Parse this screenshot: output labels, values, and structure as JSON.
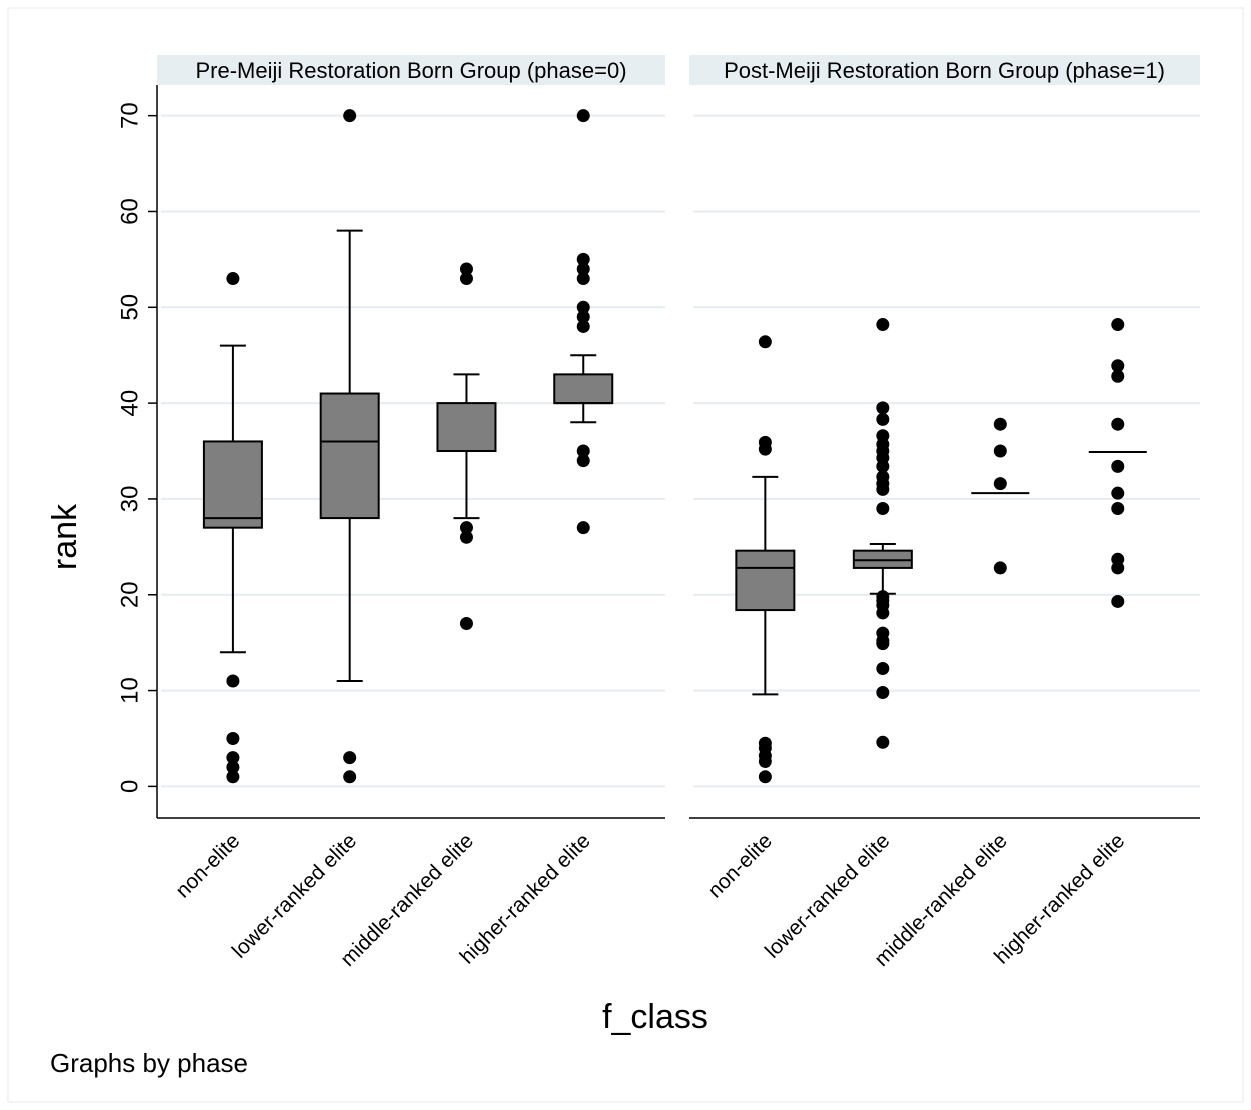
{
  "chart_data": {
    "type": "box",
    "ylabel": "rank",
    "xlabel": "f_class",
    "note": "Graphs by phase",
    "categories": [
      "non-elite",
      "lower-ranked elite",
      "middle-ranked elite",
      "higher-ranked elite"
    ],
    "grid": true,
    "colors": {
      "box_fill": "#7f7f7f",
      "grid": "#e6ecef",
      "panel_title_bg": "#e7eef1",
      "marker": "#000000"
    },
    "panels": [
      {
        "title": "Pre-Meiji Restoration Born Group (phase=0)",
        "yticks": [
          0,
          10,
          20,
          30,
          40,
          50,
          60,
          70
        ],
        "ylim": [
          -3.3,
          73.2
        ],
        "boxes": [
          {
            "category": "non-elite",
            "lower_whisker": 14,
            "q1": 27,
            "median": 28,
            "q3": 36,
            "upper_whisker": 46,
            "outliers": [
              53,
              11,
              5,
              3,
              2,
              1
            ]
          },
          {
            "category": "lower-ranked elite",
            "lower_whisker": 11,
            "q1": 28,
            "median": 36,
            "q3": 41,
            "upper_whisker": 58,
            "outliers": [
              70,
              3,
              1
            ]
          },
          {
            "category": "middle-ranked elite",
            "lower_whisker": 28,
            "q1": 35,
            "median": 35,
            "q3": 40,
            "upper_whisker": 43,
            "outliers": [
              54,
              53,
              27,
              26,
              17
            ]
          },
          {
            "category": "higher-ranked elite",
            "lower_whisker": 38,
            "q1": 40,
            "median": 40,
            "q3": 43,
            "upper_whisker": 45,
            "outliers": [
              70,
              55,
              54,
              53,
              50,
              49,
              48,
              35,
              34,
              27
            ]
          }
        ]
      },
      {
        "title": "Post-Meiji Restoration Born Group (phase=1)",
        "yticks": [
          0,
          10,
          20,
          30,
          40,
          50,
          60,
          70
        ],
        "ylim": [
          -3.3,
          73.2
        ],
        "boxes": [
          {
            "category": "non-elite",
            "lower_whisker": 9.6,
            "q1": 18.4,
            "median": 22.8,
            "q3": 24.6,
            "upper_whisker": 32.3,
            "outliers": [
              46.4,
              35.9,
              35.2,
              4.5,
              4.0,
              3.2,
              2.6,
              1.0
            ]
          },
          {
            "category": "lower-ranked elite",
            "lower_whisker": 20.1,
            "q1": 22.8,
            "median": 23.6,
            "q3": 24.6,
            "upper_whisker": 25.3,
            "outliers": [
              48.2,
              39.5,
              38.3,
              36.6,
              35.7,
              35.0,
              34.3,
              33.4,
              32.3,
              31.6,
              31.0,
              29.0,
              19.8,
              19.4,
              18.9,
              18.1,
              16.0,
              15.2,
              14.9,
              12.3,
              9.8,
              4.6
            ]
          },
          {
            "category": "middle-ranked elite",
            "lower_whisker": 30.6,
            "q1": 30.6,
            "median": 30.6,
            "q3": 30.6,
            "upper_whisker": 30.6,
            "outliers": [
              37.8,
              35.0,
              31.6,
              22.8
            ]
          },
          {
            "category": "higher-ranked elite",
            "lower_whisker": 34.9,
            "q1": 34.9,
            "median": 34.9,
            "q3": 34.9,
            "upper_whisker": 34.9,
            "outliers": [
              48.2,
              43.9,
              42.8,
              37.8,
              33.4,
              30.6,
              29.0,
              23.7,
              22.8,
              19.3
            ]
          }
        ]
      }
    ]
  }
}
